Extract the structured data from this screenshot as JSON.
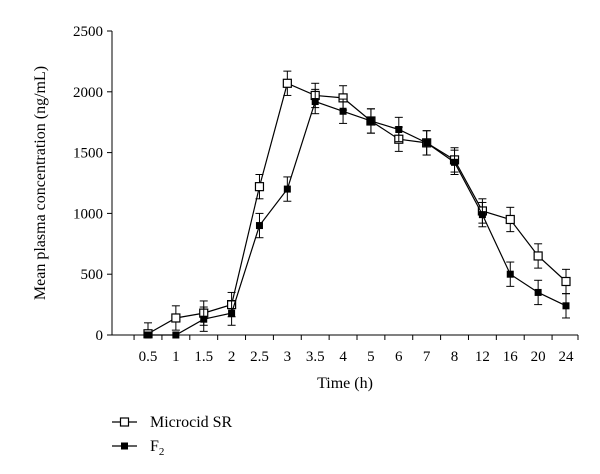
{
  "chart_data": {
    "type": "line",
    "xlabel": "Time (h)",
    "ylabel": "Mean plasma concentration (ng/mL)",
    "ylim": [
      0,
      2500
    ],
    "yticks": [
      0,
      500,
      1000,
      1500,
      2000,
      2500
    ],
    "categories": [
      "0.5",
      "1",
      "1.5",
      "2",
      "2.5",
      "3",
      "3.5",
      "4",
      "5",
      "6",
      "7",
      "8",
      "12",
      "16",
      "20",
      "24"
    ],
    "grid": false,
    "legend_position": "bottom-left",
    "series": [
      {
        "name": "Microcid SR",
        "marker": "open-square",
        "values": [
          10,
          140,
          180,
          250,
          1220,
          2070,
          1970,
          1950,
          1760,
          1610,
          1580,
          1440,
          1020,
          950,
          650,
          440
        ],
        "errors": [
          90,
          100,
          100,
          100,
          100,
          100,
          100,
          100,
          100,
          100,
          100,
          100,
          100,
          100,
          100,
          100
        ]
      },
      {
        "name": "F",
        "name_subscript": "2",
        "marker": "filled-square",
        "values": [
          0,
          0,
          130,
          180,
          900,
          1200,
          1920,
          1840,
          1760,
          1690,
          1580,
          1420,
          990,
          500,
          350,
          240
        ],
        "errors": [
          0,
          0,
          100,
          100,
          100,
          100,
          100,
          100,
          100,
          100,
          100,
          100,
          100,
          100,
          100,
          100
        ]
      }
    ]
  }
}
